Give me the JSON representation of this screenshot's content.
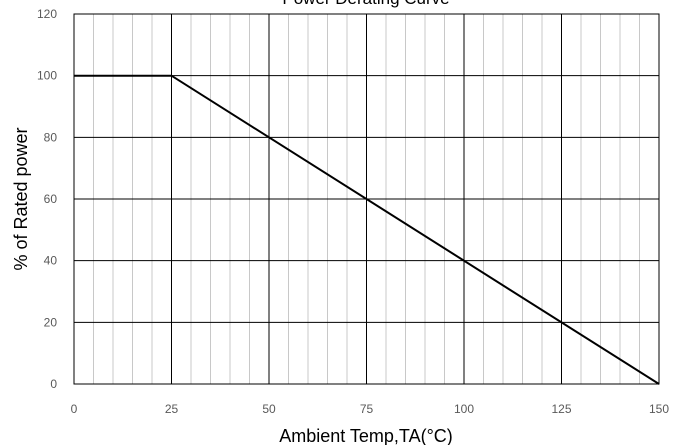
{
  "chart_data": {
    "type": "line",
    "title": "Power Derating Curve",
    "xlabel": "Ambient Temp,TA(°C)",
    "ylabel": "% of Rated power",
    "xlim": [
      0,
      150
    ],
    "ylim": [
      0,
      120
    ],
    "x_ticks": [
      "0",
      "25",
      "50",
      "75",
      "100",
      "125",
      "150"
    ],
    "y_ticks": [
      "0",
      "20",
      "40",
      "60",
      "80",
      "100",
      "120"
    ],
    "grid": true,
    "legend": "none",
    "series": [
      {
        "x": [
          0,
          25,
          150
        ],
        "y": [
          100,
          100,
          0
        ],
        "color": "#000000"
      }
    ]
  }
}
